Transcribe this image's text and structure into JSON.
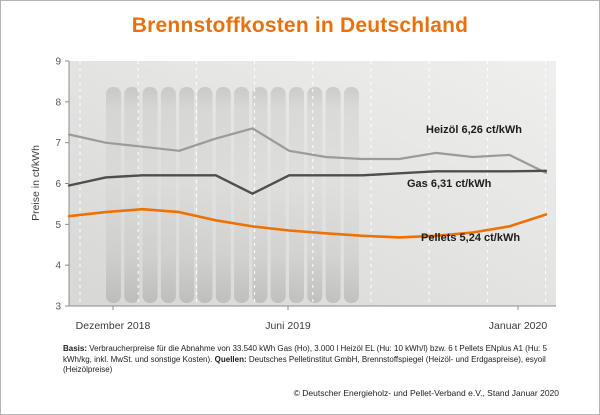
{
  "title": "Brennstoffkosten in Deutschland",
  "theme": {
    "accent_color": "#e8710d",
    "axis_color": "#8c8c8c",
    "plot_bg_light": "#efefee",
    "plot_bg_dark": "#d7d7d6"
  },
  "chart_data": {
    "type": "line",
    "x": [
      "Dez 2018",
      "Jan 2019",
      "Feb 2019",
      "Mär 2019",
      "Apr 2019",
      "Mai 2019",
      "Jun 2019",
      "Jul 2019",
      "Aug 2019",
      "Sep 2019",
      "Okt 2019",
      "Nov 2019",
      "Dez 2019",
      "Jan 2020"
    ],
    "series": [
      {
        "id": "heizoel",
        "name": "Heizöl",
        "label": "Heizöl 6,26 ct/kWh",
        "color": "#9b9b9b",
        "final_value": "6,26 ct/kWh",
        "values": [
          7.2,
          7.0,
          6.9,
          6.8,
          7.1,
          7.35,
          6.8,
          6.65,
          6.6,
          6.6,
          6.75,
          6.65,
          6.7,
          6.26
        ]
      },
      {
        "id": "gas",
        "name": "Gas",
        "label": "Gas 6,31 ct/kWh",
        "color": "#4e4e4e",
        "final_value": "6,31 ct/kWh",
        "values": [
          5.95,
          6.15,
          6.2,
          6.2,
          6.2,
          5.75,
          6.2,
          6.2,
          6.2,
          6.25,
          6.3,
          6.3,
          6.3,
          6.31
        ]
      },
      {
        "id": "pellets",
        "name": "Pellets",
        "label": "Pellets 5,24 ct/kWh",
        "color": "#ee7203",
        "final_value": "5,24 ct/kWh",
        "values": [
          5.2,
          5.3,
          5.37,
          5.3,
          5.1,
          4.95,
          4.85,
          4.78,
          4.72,
          4.68,
          4.72,
          4.8,
          4.95,
          5.24
        ]
      }
    ],
    "ylabel": "Preise in ct/kWh",
    "ylim": [
      3,
      9
    ],
    "yticks": [
      3,
      4,
      5,
      6,
      7,
      8,
      9
    ],
    "xtick_labels": [
      "Dezember 2018",
      "Juni 2019",
      "Januar 2020"
    ],
    "grid": "dashed-vertical-white",
    "legend_position": "inline-right"
  },
  "footnote": {
    "basis_label": "Basis:",
    "basis_text": "Verbraucherpreise für die Abnahme von 33.540 kWh Gas (Ho), 3.000 l Heizöl EL (Hu: 10 kWh/l) bzw. 6 t Pellets ENplus A1 (Hu: 5 kWh/kg, inkl. MwSt. und sonstige Kosten).",
    "quellen_label": "Quellen:",
    "quellen_text": "Deutsches Pelletinstitut GmbH, Brennstoffspiegel (Heizöl- und Erdgaspreise), esyoil (Heizölpreise)"
  },
  "copyright": "© Deutscher Energieholz- und Pellet-Verband e.V., Stand Januar 2020"
}
